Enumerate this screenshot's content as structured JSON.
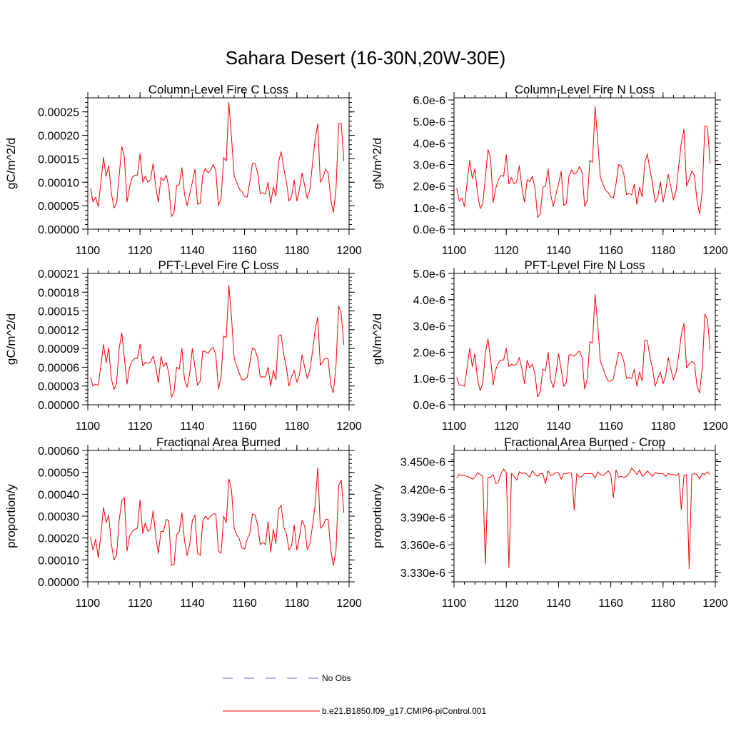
{
  "title": "Sahara Desert (16-30N,20W-30E)",
  "colors": {
    "model": "#ff0000",
    "obs": "#6b6bd6",
    "axis": "#000000"
  },
  "legend": [
    {
      "label": "No Obs",
      "style": "dashed",
      "color": "#6b6bd6"
    },
    {
      "label": "b.e21.B1850.f09_g17.CMIP6-piControl.001",
      "style": "solid",
      "color": "#ff0000"
    }
  ],
  "chart_data": [
    {
      "type": "line",
      "title": "Column-Level Fire C Loss",
      "ylabel": "gC/m^2/d",
      "xlim": [
        1100,
        1200
      ],
      "ylim": [
        0,
        0.00028
      ],
      "xticks": [
        "1100",
        "1120",
        "1140",
        "1160",
        "1180",
        "1200"
      ],
      "yticks": [
        0,
        5e-05,
        0.0001,
        0.00015,
        0.0002,
        0.00025
      ],
      "ytick_labels": [
        "0.00000",
        "0.00005",
        "0.00010",
        "0.00015",
        "0.00020",
        "0.00025"
      ],
      "x_start": 1101,
      "series": [
        {
          "name": "b.e21.B1850.f09_g17.CMIP6-piControl.001",
          "values": [
            8.8e-05,
            5.8e-05,
            6.8e-05,
            4.8e-05,
            0.0001,
            0.000153,
            0.000113,
            0.000135,
            7.8e-05,
            4.5e-05,
            5.5e-05,
            0.000113,
            0.000176,
            0.000155,
            5.8e-05,
            9e-05,
            0.00011,
            0.000115,
            0.000115,
            0.000161,
            0.0001,
            0.000113,
            0.0001,
            0.000105,
            0.00014,
            9e-05,
            5.8e-05,
            0.00011,
            0.000103,
            0.000115,
            9e-05,
            2.7e-05,
            3.5e-05,
            9.3e-05,
            9.5e-05,
            0.000131,
            7.5e-05,
            5e-05,
            7.5e-05,
            0.0001,
            0.000128,
            5.3e-05,
            5.5e-05,
            0.000115,
            0.00013,
            0.00012,
            0.000125,
            0.000138,
            0.000125,
            5e-05,
            6.5e-05,
            0.000153,
            0.000145,
            0.00027,
            0.000195,
            0.000113,
            0.0001,
            8.5e-05,
            8e-05,
            7e-05,
            6.8e-05,
            0.0001,
            0.00014,
            0.00014,
            0.00012,
            7.5e-05,
            7.8e-05,
            7.5e-05,
            0.0001,
            5.5e-05,
            9e-05,
            7e-05,
            0.000143,
            0.000165,
            0.00013,
            0.0001,
            6e-05,
            7e-05,
            0.000105,
            6e-05,
            8.5e-05,
            0.00012,
            9.3e-05,
            6.5e-05,
            8.5e-05,
            0.00014,
            0.00019,
            0.000225,
            0.0001,
            0.00011,
            0.000128,
            0.00012,
            6.3e-05,
            3.5e-05,
            8.5e-05,
            0.000225,
            0.000225,
            0.000145
          ]
        }
      ]
    },
    {
      "type": "line",
      "title": "Column-Level Fire N Loss",
      "ylabel": "gN/m^2/d",
      "xlim": [
        1100,
        1200
      ],
      "ylim": [
        0,
        6.1e-06
      ],
      "xticks": [
        "1100",
        "1120",
        "1140",
        "1160",
        "1180",
        "1200"
      ],
      "yticks": [
        0,
        1e-06,
        2e-06,
        3e-06,
        4e-06,
        5e-06,
        6e-06
      ],
      "ytick_labels": [
        "0.0e-6",
        "1.0e-6",
        "2.0e-6",
        "3.0e-6",
        "4.0e-6",
        "5.0e-6",
        "6.0e-6"
      ],
      "x_start": 1101,
      "series": [
        {
          "name": "b.e21.B1850.f09_g17.CMIP6-piControl.001",
          "values": [
            1.9e-06,
            1.3e-06,
            1.45e-06,
            1.05e-06,
            2.15e-06,
            3.2e-06,
            2.35e-06,
            2.8e-06,
            1.65e-06,
            9.5e-07,
            1.2e-06,
            2.4e-06,
            3.7e-06,
            3.3e-06,
            1.25e-06,
            1.9e-06,
            2.3e-06,
            2.5e-06,
            2.45e-06,
            3.45e-06,
            2.1e-06,
            2.4e-06,
            2.1e-06,
            2.2e-06,
            2.95e-06,
            1.9e-06,
            1.25e-06,
            2.3e-06,
            2.2e-06,
            2.45e-06,
            1.9e-06,
            5.5e-07,
            7e-07,
            1.95e-06,
            2e-06,
            2.8e-06,
            1.6e-06,
            1.05e-06,
            1.6e-06,
            2.1e-06,
            2.7e-06,
            1.1e-06,
            1.2e-06,
            2.45e-06,
            2.75e-06,
            2.55e-06,
            2.65e-06,
            2.9e-06,
            2.65e-06,
            1.05e-06,
            1.35e-06,
            3.2e-06,
            3.1e-06,
            5.7e-06,
            4.1e-06,
            2.4e-06,
            2.1e-06,
            1.8e-06,
            1.7e-06,
            1.5e-06,
            1.45e-06,
            2.1e-06,
            3e-06,
            2.95e-06,
            2.55e-06,
            1.6e-06,
            1.65e-06,
            1.6e-06,
            2.1e-06,
            1.15e-06,
            1.95e-06,
            1.5e-06,
            3.05e-06,
            3.5e-06,
            2.75e-06,
            2.1e-06,
            1.25e-06,
            1.5e-06,
            2.2e-06,
            1.25e-06,
            1.8e-06,
            2.55e-06,
            1.95e-06,
            1.35e-06,
            1.8e-06,
            2.95e-06,
            4e-06,
            4.65e-06,
            2e-06,
            2.3e-06,
            2.7e-06,
            2.5e-06,
            1.3e-06,
            7e-07,
            1.75e-06,
            4.8e-06,
            4.75e-06,
            3.05e-06
          ]
        }
      ]
    },
    {
      "type": "line",
      "title": "PFT-Level Fire C Loss",
      "ylabel": "gC/m^2/d",
      "xlim": [
        1100,
        1200
      ],
      "ylim": [
        0,
        0.00021
      ],
      "xticks": [
        "1100",
        "1120",
        "1140",
        "1160",
        "1180",
        "1200"
      ],
      "yticks": [
        0,
        3e-05,
        6e-05,
        9e-05,
        0.00012,
        0.00015,
        0.00018,
        0.00021
      ],
      "ytick_labels": [
        "0.00000",
        "0.00003",
        "0.00006",
        "0.00009",
        "0.00012",
        "0.00015",
        "0.00018",
        "0.00021"
      ],
      "x_start": 1101,
      "series": [
        {
          "name": "b.e21.B1850.f09_g17.CMIP6-piControl.001",
          "values": [
            4.4e-05,
            3e-05,
            3.3e-05,
            3.1e-05,
            6.2e-05,
            9.7e-05,
            6.7e-05,
            9.1e-05,
            4.2e-05,
            2.4e-05,
            3.5e-05,
            9e-05,
            0.000115,
            7.5e-05,
            3.3e-05,
            6e-05,
            7e-05,
            7.4e-05,
            7.4e-05,
            9.7e-05,
            6.2e-05,
            6.8e-05,
            6.6e-05,
            6.8e-05,
            7.8e-05,
            6e-05,
            3.5e-05,
            7.7e-05,
            6.1e-05,
            6.8e-05,
            5e-05,
            1.2e-05,
            2.1e-05,
            6e-05,
            5.7e-05,
            9e-05,
            4.1e-05,
            2.8e-05,
            5e-05,
            9e-05,
            6e-05,
            3.1e-05,
            3.8e-05,
            8.6e-05,
            8.5e-05,
            8.2e-05,
            8.8e-05,
            9.2e-05,
            8e-05,
            2.5e-05,
            4.5e-05,
            0.00011,
            0.000107,
            0.000191,
            0.00014,
            7.5e-05,
            6.2e-05,
            5e-05,
            4e-05,
            4e-05,
            4.4e-05,
            6.6e-05,
            9.1e-05,
            8.8e-05,
            7.5e-05,
            4.4e-05,
            4.5e-05,
            4.4e-05,
            6e-05,
            3e-05,
            5.5e-05,
            4e-05,
            0.00011,
            0.000112,
            8e-05,
            6e-05,
            3e-05,
            4.5e-05,
            5.5e-05,
            3.6e-05,
            4.8e-05,
            8e-05,
            6e-05,
            4.2e-05,
            5.5e-05,
            8.5e-05,
            0.00012,
            0.00014,
            6.3e-05,
            7e-05,
            7.5e-05,
            7.3e-05,
            3.1e-05,
            1.9e-05,
            6.3e-05,
            0.000158,
            0.000146,
            9.6e-05
          ]
        }
      ]
    },
    {
      "type": "line",
      "title": "PFT-Level Fire N Loss",
      "ylabel": "gN/m^2/d",
      "xlim": [
        1100,
        1200
      ],
      "ylim": [
        0,
        5e-06
      ],
      "xticks": [
        "1100",
        "1120",
        "1140",
        "1160",
        "1180",
        "1200"
      ],
      "yticks": [
        0,
        1e-06,
        2e-06,
        3e-06,
        4e-06,
        5e-06
      ],
      "ytick_labels": [
        "0.0e-6",
        "1.0e-6",
        "2.0e-6",
        "3.0e-6",
        "4.0e-6",
        "5.0e-6"
      ],
      "x_start": 1101,
      "series": [
        {
          "name": "b.e21.B1850.f09_g17.CMIP6-piControl.001",
          "values": [
            1.05e-06,
            7.5e-07,
            7.5e-07,
            7e-07,
            1.4e-06,
            2.15e-06,
            1.45e-06,
            1.95e-06,
            9.5e-07,
            5.5e-07,
            8e-07,
            2e-06,
            2.5e-06,
            1.75e-06,
            7.5e-07,
            1.35e-06,
            1.6e-06,
            1.7e-06,
            1.7e-06,
            2.15e-06,
            1.45e-06,
            1.55e-06,
            1.5e-06,
            1.55e-06,
            1.8e-06,
            1.35e-06,
            8e-07,
            1.7e-06,
            1.4e-06,
            1.55e-06,
            1.15e-06,
            3e-07,
            5e-07,
            1.35e-06,
            1.3e-06,
            2e-06,
            9.5e-07,
            6.5e-07,
            1.15e-06,
            1.95e-06,
            1.35e-06,
            7e-07,
            8.5e-07,
            1.9e-06,
            1.9e-06,
            1.85e-06,
            1.95e-06,
            2.05e-06,
            1.8e-06,
            6e-07,
            1e-06,
            2.4e-06,
            2.35e-06,
            4.2e-06,
            3.05e-06,
            1.65e-06,
            1.4e-06,
            1.1e-06,
            9e-07,
            9e-07,
            1e-06,
            1.5e-06,
            2e-06,
            1.95e-06,
            1.65e-06,
            1e-06,
            1.05e-06,
            1e-06,
            1.35e-06,
            7e-07,
            1.25e-06,
            9e-07,
            2.45e-06,
            2.45e-06,
            1.8e-06,
            1.35e-06,
            7e-07,
            1e-06,
            1.25e-06,
            8e-07,
            1.1e-06,
            1.8e-06,
            1.35e-06,
            9.5e-07,
            1.25e-06,
            1.9e-06,
            2.65e-06,
            3.1e-06,
            1.4e-06,
            1.55e-06,
            1.65e-06,
            1.6e-06,
            7e-07,
            4.5e-07,
            1.4e-06,
            3.45e-06,
            3.25e-06,
            2.1e-06
          ]
        }
      ]
    },
    {
      "type": "line",
      "title": "Fractional Area Burned",
      "ylabel": "proportion/y",
      "xlim": [
        1100,
        1200
      ],
      "ylim": [
        0,
        0.0006
      ],
      "xticks": [
        "1100",
        "1120",
        "1140",
        "1160",
        "1180",
        "1200"
      ],
      "yticks": [
        0,
        0.0001,
        0.0002,
        0.0003,
        0.0004,
        0.0005,
        0.0006
      ],
      "ytick_labels": [
        "0.00000",
        "0.00010",
        "0.00020",
        "0.00030",
        "0.00040",
        "0.00050",
        "0.00060"
      ],
      "x_start": 1101,
      "series": [
        {
          "name": "b.e21.B1850.f09_g17.CMIP6-piControl.001",
          "values": [
            0.000205,
            0.000145,
            0.000195,
            0.00011,
            0.000215,
            0.00034,
            0.00027,
            0.000305,
            0.000175,
            0.0001,
            0.00012,
            0.00028,
            0.00037,
            0.000385,
            0.00014,
            0.00021,
            0.00023,
            0.00024,
            0.000245,
            0.000375,
            0.00022,
            0.00027,
            0.00023,
            0.00024,
            0.000325,
            0.000205,
            0.00013,
            0.00023,
            0.00023,
            0.000285,
            0.00028,
            7.5e-05,
            8e-05,
            0.000215,
            0.00023,
            0.000315,
            0.00019,
            0.00012,
            0.00017,
            0.00028,
            0.000305,
            0.00013,
            0.00012,
            0.000275,
            0.0003,
            0.000285,
            0.0003,
            0.00031,
            0.00031,
            0.00014,
            0.00013,
            0.0003,
            0.00027,
            0.00047,
            0.00042,
            0.000245,
            0.000215,
            0.000195,
            0.000155,
            0.00015,
            0.000195,
            0.00022,
            0.00031,
            0.000305,
            0.00026,
            0.00017,
            0.00018,
            0.00017,
            0.000275,
            0.000135,
            0.00024,
            0.000175,
            0.00033,
            0.00035,
            0.00025,
            0.00022,
            0.000145,
            0.000165,
            0.00026,
            0.000145,
            0.000205,
            0.00028,
            0.000255,
            0.000145,
            0.000175,
            0.000255,
            0.00035,
            0.00052,
            0.000245,
            0.000255,
            0.000285,
            0.000285,
            0.000145,
            7.5e-05,
            0.000145,
            0.00044,
            0.000465,
            0.000315
          ]
        }
      ]
    },
    {
      "type": "line",
      "title": "Fractional Area Burned - Crop",
      "ylabel": "proportion/y",
      "xlim": [
        1100,
        1200
      ],
      "ylim": [
        3.32e-06,
        3.462e-06
      ],
      "xticks": [
        "1100",
        "1120",
        "1140",
        "1160",
        "1180",
        "1200"
      ],
      "yticks": [
        3.33e-06,
        3.36e-06,
        3.39e-06,
        3.42e-06,
        3.45e-06
      ],
      "ytick_labels": [
        "3.330e-6",
        "3.360e-6",
        "3.390e-6",
        "3.420e-6",
        "3.450e-6"
      ],
      "x_start": 1101,
      "series": [
        {
          "name": "b.e21.B1850.f09_g17.CMIP6-piControl.001",
          "values": [
            3.432e-06,
            3.436e-06,
            3.435e-06,
            3.435e-06,
            3.434e-06,
            3.433e-06,
            3.431e-06,
            3.433e-06,
            3.438e-06,
            3.436e-06,
            3.434e-06,
            3.339e-06,
            3.433e-06,
            3.433e-06,
            3.436e-06,
            3.426e-06,
            3.428e-06,
            3.437e-06,
            3.442e-06,
            3.438e-06,
            3.335e-06,
            3.437e-06,
            3.434e-06,
            3.43e-06,
            3.439e-06,
            3.437e-06,
            3.438e-06,
            3.436e-06,
            3.433e-06,
            3.44e-06,
            3.436e-06,
            3.434e-06,
            3.437e-06,
            3.437e-06,
            3.426e-06,
            3.44e-06,
            3.435e-06,
            3.436e-06,
            3.438e-06,
            3.438e-06,
            3.431e-06,
            3.437e-06,
            3.437e-06,
            3.438e-06,
            3.437e-06,
            3.398e-06,
            3.437e-06,
            3.433e-06,
            3.434e-06,
            3.437e-06,
            3.437e-06,
            3.437e-06,
            3.437e-06,
            3.432e-06,
            3.439e-06,
            3.436e-06,
            3.435e-06,
            3.437e-06,
            3.44e-06,
            3.436e-06,
            3.411e-06,
            3.441e-06,
            3.433e-06,
            3.434e-06,
            3.433e-06,
            3.434e-06,
            3.437e-06,
            3.443e-06,
            3.44e-06,
            3.436e-06,
            3.441e-06,
            3.434e-06,
            3.436e-06,
            3.44e-06,
            3.437e-06,
            3.434e-06,
            3.438e-06,
            3.437e-06,
            3.437e-06,
            3.437e-06,
            3.434e-06,
            3.437e-06,
            3.436e-06,
            3.436e-06,
            3.435e-06,
            3.437e-06,
            3.398e-06,
            3.435e-06,
            3.436e-06,
            3.334e-06,
            3.436e-06,
            3.437e-06,
            3.436e-06,
            3.431e-06,
            3.437e-06,
            3.436e-06,
            3.439e-06,
            3.436e-06
          ]
        }
      ]
    }
  ]
}
